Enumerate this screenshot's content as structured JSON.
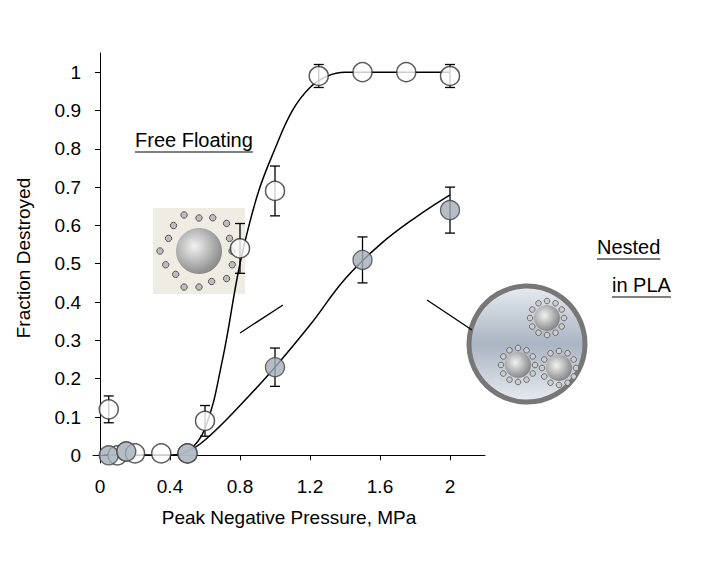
{
  "chart_data": {
    "type": "scatter",
    "x_label": "Peak Negative Pressure, MPa",
    "y_label": "Fraction Destroyed",
    "xlim": [
      -0.04,
      2.2
    ],
    "xticks": [
      0,
      0.4,
      0.8,
      1.2,
      1.6,
      2
    ],
    "ylim": [
      -0.02,
      1.05
    ],
    "yticks": [
      0,
      0.1,
      0.2,
      0.3,
      0.4,
      0.5,
      0.6,
      0.7,
      0.8,
      0.9,
      1
    ],
    "grid": false,
    "series": [
      {
        "name": "Free Floating",
        "marker": "open_circle",
        "color": "#ffffff",
        "x": [
          0.05,
          0.1,
          0.15,
          0.2,
          0.35,
          0.5,
          0.6,
          0.8,
          1.0,
          1.25,
          1.5,
          1.75,
          2.0
        ],
        "values": [
          0.12,
          0.0,
          0.01,
          0.005,
          0.005,
          0.005,
          0.09,
          0.54,
          0.69,
          0.99,
          1.0,
          1.0,
          0.99
        ],
        "errors": [
          0.035,
          null,
          null,
          null,
          null,
          null,
          0.04,
          0.065,
          0.065,
          0.03,
          null,
          null,
          0.03
        ],
        "fit": {
          "x": [
            0.02,
            0.4,
            0.5,
            0.6,
            0.7,
            0.8,
            0.9,
            1.0,
            1.1,
            1.2,
            1.3,
            1.4,
            1.6,
            2.0
          ],
          "values": [
            0,
            0,
            0.01,
            0.07,
            0.25,
            0.5,
            0.68,
            0.8,
            0.9,
            0.96,
            0.99,
            1.0,
            1.0,
            1.0
          ]
        }
      },
      {
        "name": "Nested in PLA",
        "marker": "filled_circle",
        "color": "#a3adb9",
        "x": [
          0.05,
          0.15,
          0.5,
          1.0,
          1.5,
          2.0
        ],
        "values": [
          0.0,
          0.01,
          0.005,
          0.23,
          0.51,
          0.64
        ],
        "errors": [
          null,
          null,
          null,
          0.05,
          0.06,
          0.06
        ],
        "fit": {
          "x": [
            0.02,
            0.4,
            0.5,
            0.6,
            0.8,
            1.0,
            1.2,
            1.4,
            1.6,
            1.8,
            2.0
          ],
          "values": [
            0,
            0,
            0.01,
            0.04,
            0.13,
            0.23,
            0.34,
            0.46,
            0.55,
            0.62,
            0.68
          ]
        }
      }
    ]
  }
}
